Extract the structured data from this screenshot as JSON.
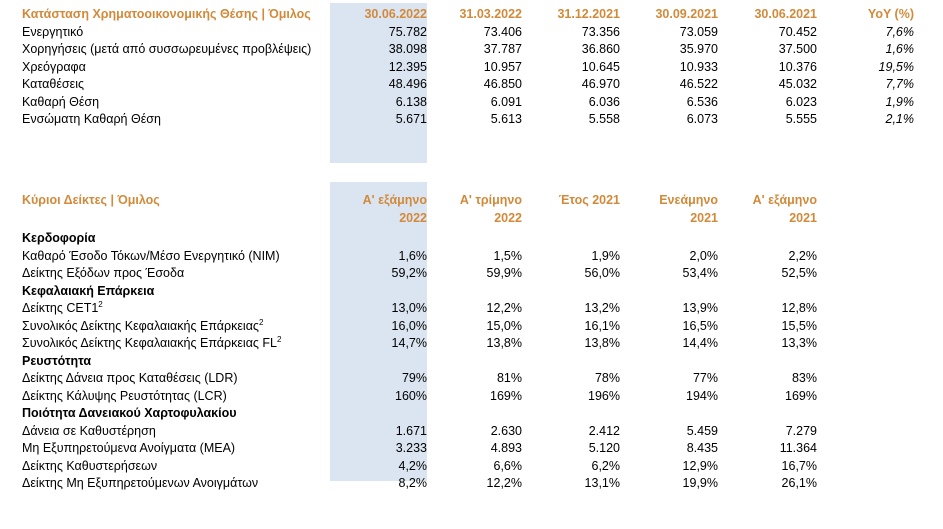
{
  "table1": {
    "header": [
      "Κατάσταση Χρηματοοικονομικής Θέσης | Όμιλος",
      "30.06.2022",
      "31.03.2022",
      "31.12.2021",
      "30.09.2021",
      "30.06.2021",
      "YoY (%)"
    ],
    "rows": [
      [
        "Ενεργητικό",
        "75.782",
        "73.406",
        "73.356",
        "73.059",
        "70.452",
        "7,6%"
      ],
      [
        "Χορηγήσεις (μετά από συσσωρευμένες προβλέψεις)",
        "38.098",
        "37.787",
        "36.860",
        "35.970",
        "37.500",
        "1,6%"
      ],
      [
        "Χρεόγραφα",
        "12.395",
        "10.957",
        "10.645",
        "10.933",
        "10.376",
        "19,5%"
      ],
      [
        "Καταθέσεις",
        "48.496",
        "46.850",
        "46.970",
        "46.522",
        "45.032",
        "7,7%"
      ],
      [
        "Καθαρή Θέση",
        "6.138",
        "6.091",
        "6.036",
        "6.536",
        "6.023",
        "1,9%"
      ],
      [
        "Ενσώματη Καθαρή Θέση",
        "5.671",
        "5.613",
        "5.558",
        "6.073",
        "5.555",
        "2,1%"
      ]
    ]
  },
  "table2": {
    "header": {
      "label": "Κύριοι Δείκτες | Όμιλος",
      "cols": [
        [
          "Α' εξάμηνο",
          "2022"
        ],
        [
          "Α' τρίμηνο",
          "2022"
        ],
        [
          "Έτος 2021",
          ""
        ],
        [
          "Ενεάμηνο",
          "2021"
        ],
        [
          "Α' εξάμηνο",
          "2021"
        ]
      ]
    },
    "sections": [
      {
        "title": "Κερδοφορία",
        "rows": [
          [
            "Καθαρό Έσοδο Τόκων/Μέσο Ενεργητικό (NIM)",
            "1,6%",
            "1,5%",
            "1,9%",
            "2,0%",
            "2,2%"
          ],
          [
            "Δείκτης Εξόδων προς Έσοδα",
            "59,2%",
            "59,9%",
            "56,0%",
            "53,4%",
            "52,5%"
          ]
        ]
      },
      {
        "title": "Κεφαλαιακή Επάρκεια",
        "rows": [
          [
            "Δείκτης CET1",
            "13,0%",
            "12,2%",
            "13,2%",
            "13,9%",
            "12,8%"
          ],
          [
            "Συνολικός Δείκτης Κεφαλαιακής Επάρκειας",
            "16,0%",
            "15,0%",
            "16,1%",
            "16,5%",
            "15,5%"
          ],
          [
            "Συνολικός Δείκτης Κεφαλαιακής Επάρκειας FL",
            "14,7%",
            "13,8%",
            "13,8%",
            "14,4%",
            "13,3%"
          ]
        ]
      },
      {
        "title": "Ρευστότητα",
        "rows": [
          [
            "Δείκτης Δάνεια προς Καταθέσεις (LDR)",
            "79%",
            "81%",
            "78%",
            "77%",
            "83%"
          ],
          [
            "Δείκτης Κάλυψης Ρευστότητας (LCR)",
            "160%",
            "169%",
            "196%",
            "194%",
            "169%"
          ]
        ]
      },
      {
        "title": "Ποιότητα Δανειακού Χαρτοφυλακίου",
        "rows": [
          [
            "Δάνεια σε Καθυστέρηση",
            "1.671",
            "2.630",
            "2.412",
            "5.459",
            "7.279"
          ],
          [
            "Μη Εξυπηρετούμενα Ανοίγματα (ΜΕΑ)",
            "3.233",
            "4.893",
            "5.120",
            "8.435",
            "11.364"
          ],
          [
            "Δείκτης Καθυστερήσεων",
            "4,2%",
            "6,6%",
            "6,2%",
            "12,9%",
            "16,7%"
          ],
          [
            "Δείκτης Μη Εξυπηρετούμενων Ανοιγμάτων",
            "8,2%",
            "12,2%",
            "13,1%",
            "19,9%",
            "26,1%"
          ]
        ]
      }
    ],
    "superscripts": {
      "1.0": "2",
      "1.1": "2",
      "1.2": "2"
    }
  }
}
